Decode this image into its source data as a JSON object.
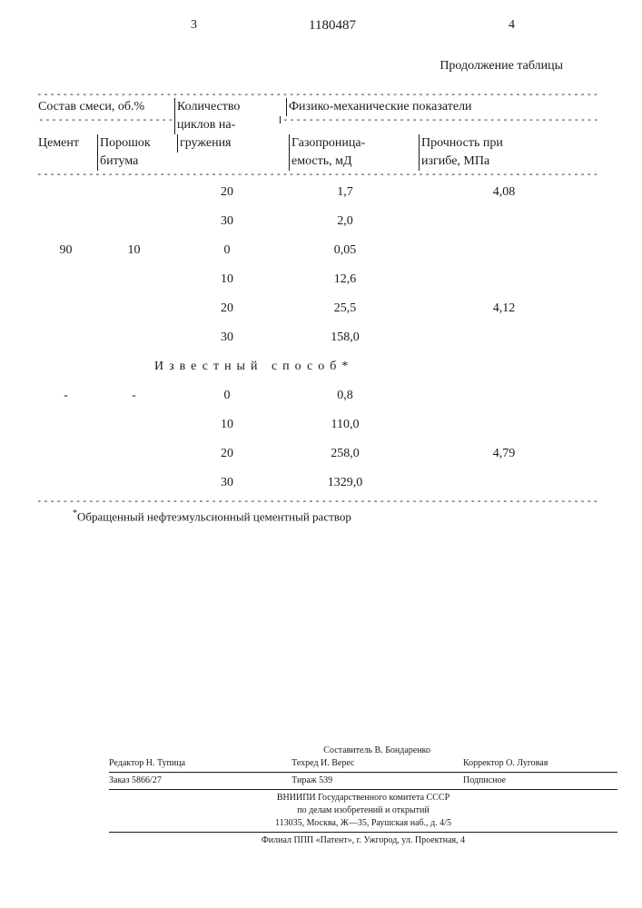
{
  "header": {
    "left_page": "3",
    "doc_number": "1180487",
    "right_page": "4",
    "continuation": "Продолжение таблицы"
  },
  "table": {
    "head": {
      "mix_label": "Состав смеси, об.%",
      "cycles_l1": "Количество",
      "cycles_l2": "циклов на-",
      "cycles_l3": "гружения",
      "phys_label": "Физико-механические показатели",
      "cement": "Цемент",
      "powder_l1": "Порошок",
      "powder_l2": "битума",
      "gas_l1": "Газопроница-",
      "gas_l2": "емость, мД",
      "strength_l1": "Прочность при",
      "strength_l2": "изгибе, МПа"
    },
    "rows": [
      {
        "cement": "",
        "powder": "",
        "cycles": "20",
        "gas": "1,7",
        "strength": "4,08"
      },
      {
        "cement": "",
        "powder": "",
        "cycles": "30",
        "gas": "2,0",
        "strength": ""
      },
      {
        "cement": "90",
        "powder": "10",
        "cycles": "0",
        "gas": "0,05",
        "strength": ""
      },
      {
        "cement": "",
        "powder": "",
        "cycles": "10",
        "gas": "12,6",
        "strength": ""
      },
      {
        "cement": "",
        "powder": "",
        "cycles": "20",
        "gas": "25,5",
        "strength": "4,12"
      },
      {
        "cement": "",
        "powder": "",
        "cycles": "30",
        "gas": "158,0",
        "strength": ""
      }
    ],
    "section_label": "Известный способ*",
    "rows2": [
      {
        "cement": "-",
        "powder": "-",
        "cycles": "0",
        "gas": "0,8",
        "strength": ""
      },
      {
        "cement": "",
        "powder": "",
        "cycles": "10",
        "gas": "110,0",
        "strength": ""
      },
      {
        "cement": "",
        "powder": "",
        "cycles": "20",
        "gas": "258,0",
        "strength": "4,79"
      },
      {
        "cement": "",
        "powder": "",
        "cycles": "30",
        "gas": "1329,0",
        "strength": ""
      }
    ],
    "footnote_marker": "*",
    "footnote_text": "Обращенный нефтеэмульсионный цементный раствор"
  },
  "credits": {
    "compiler": "Составитель В. Бондаренко",
    "editor": "Редактор Н. Тупица",
    "techred": "Техред И. Верес",
    "corrector": "Корректор О. Луговая",
    "order": "Заказ 5866/27",
    "tirage": "Тираж 539",
    "sign": "Подписное",
    "line1": "ВНИИПИ Государственного комитета СССР",
    "line2": "по делам изобретений и открытий",
    "line3": "113035, Москва, Ж—35, Раушская наб., д. 4/5",
    "line4": "Филиал ППП «Патент», г. Ужгород, ул. Проектная, 4"
  },
  "style": {
    "text_color": "#1a1a1a",
    "background": "#ffffff",
    "body_font_size_pt": 11,
    "credits_font_size_pt": 8
  }
}
